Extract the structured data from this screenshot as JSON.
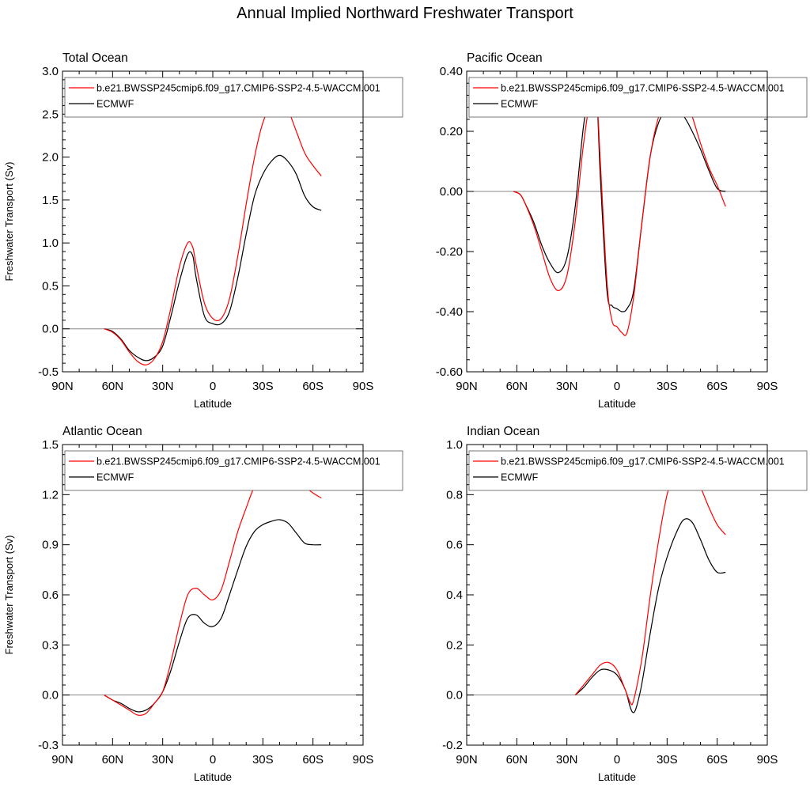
{
  "title": "Annual Implied Northward Freshwater Transport",
  "colors": {
    "model": "#ff0000",
    "obs": "#000000",
    "zero_line": "#888888"
  },
  "chart_data": [
    {
      "type": "line",
      "title": "Total Ocean",
      "xlabel": "Latitude",
      "ylabel": "Freshwater Transport (Sv)",
      "xlim": [
        90,
        -90
      ],
      "xticks": [
        90,
        60,
        30,
        0,
        -30,
        -60,
        -90
      ],
      "xtick_labels": [
        "90N",
        "60N",
        "30N",
        "0",
        "30S",
        "60S",
        "90S"
      ],
      "ylim": [
        -0.5,
        3.0
      ],
      "yticks": [
        -0.5,
        0.0,
        0.5,
        1.0,
        1.5,
        2.0,
        2.5,
        3.0
      ],
      "ytick_labels": [
        "-0.5",
        "0.0",
        "0.5",
        "1.0",
        "1.5",
        "2.0",
        "2.5",
        "3.0"
      ],
      "legend_position": "top-left",
      "series": [
        {
          "name": "b.e21.BWSSP245cmip6.f09_g17.CMIP6-SSP2-4.5-WACCM.001",
          "color": "#ff0000",
          "x": [
            65,
            60,
            55,
            50,
            45,
            40,
            35,
            30,
            25,
            20,
            15,
            12,
            10,
            5,
            0,
            -5,
            -10,
            -15,
            -20,
            -25,
            -30,
            -35,
            -40,
            -45,
            -50,
            -55,
            -60,
            -65
          ],
          "y": [
            0.0,
            -0.04,
            -0.13,
            -0.27,
            -0.38,
            -0.42,
            -0.35,
            -0.15,
            0.25,
            0.72,
            1.0,
            0.95,
            0.75,
            0.3,
            0.12,
            0.12,
            0.35,
            0.85,
            1.45,
            2.0,
            2.4,
            2.6,
            2.65,
            2.55,
            2.3,
            2.05,
            1.9,
            1.78
          ]
        },
        {
          "name": "ECMWF",
          "color": "#000000",
          "x": [
            65,
            60,
            55,
            50,
            45,
            40,
            35,
            30,
            25,
            20,
            15,
            12,
            10,
            5,
            0,
            -5,
            -10,
            -15,
            -20,
            -25,
            -30,
            -35,
            -40,
            -45,
            -50,
            -55,
            -60,
            -65
          ],
          "y": [
            0.0,
            -0.03,
            -0.12,
            -0.25,
            -0.33,
            -0.37,
            -0.33,
            -0.2,
            0.15,
            0.55,
            0.87,
            0.85,
            0.6,
            0.15,
            0.06,
            0.06,
            0.2,
            0.6,
            1.1,
            1.55,
            1.8,
            1.95,
            2.02,
            1.95,
            1.8,
            1.55,
            1.42,
            1.38
          ]
        }
      ]
    },
    {
      "type": "line",
      "title": "Pacific Ocean",
      "xlabel": "Latitude",
      "ylabel": "",
      "xlim": [
        90,
        -90
      ],
      "xticks": [
        90,
        60,
        30,
        0,
        -30,
        -60,
        -90
      ],
      "xtick_labels": [
        "90N",
        "60N",
        "30N",
        "0",
        "30S",
        "60S",
        "90S"
      ],
      "ylim": [
        -0.6,
        0.4
      ],
      "yticks": [
        -0.6,
        -0.4,
        -0.2,
        0.0,
        0.2,
        0.4
      ],
      "ytick_labels": [
        "-0.60",
        "-0.40",
        "-0.20",
        "0.00",
        "0.20",
        "0.40"
      ],
      "legend_position": "top-left",
      "series": [
        {
          "name": "b.e21.BWSSP245cmip6.f09_g17.CMIP6-SSP2-4.5-WACCM.001",
          "color": "#ff0000",
          "x": [
            62,
            58,
            55,
            50,
            45,
            40,
            35,
            30,
            25,
            20,
            15,
            12,
            10,
            6,
            3,
            0,
            -3,
            -6,
            -10,
            -15,
            -20,
            -25,
            -30,
            -35,
            -40,
            -45,
            -50,
            -55,
            -60,
            -65
          ],
          "y": [
            0.0,
            -0.01,
            -0.04,
            -0.11,
            -0.2,
            -0.29,
            -0.33,
            -0.28,
            -0.1,
            0.16,
            0.33,
            0.3,
            0.1,
            -0.3,
            -0.43,
            -0.45,
            -0.47,
            -0.47,
            -0.35,
            -0.1,
            0.12,
            0.25,
            0.31,
            0.33,
            0.32,
            0.25,
            0.16,
            0.08,
            0.02,
            -0.05
          ]
        },
        {
          "name": "ECMWF",
          "color": "#000000",
          "x": [
            62,
            58,
            55,
            50,
            45,
            40,
            35,
            30,
            25,
            20,
            15,
            12,
            10,
            6,
            3,
            0,
            -3,
            -6,
            -10,
            -15,
            -20,
            -25,
            -30,
            -35,
            -40,
            -45,
            -50,
            -55,
            -60,
            -65
          ],
          "y": [
            0.0,
            -0.01,
            -0.04,
            -0.1,
            -0.18,
            -0.24,
            -0.27,
            -0.22,
            -0.05,
            0.22,
            0.37,
            0.3,
            0.05,
            -0.33,
            -0.38,
            -0.39,
            -0.4,
            -0.39,
            -0.33,
            -0.1,
            0.12,
            0.23,
            0.27,
            0.27,
            0.25,
            0.2,
            0.14,
            0.07,
            0.01,
            0.0
          ]
        }
      ]
    },
    {
      "type": "line",
      "title": "Atlantic Ocean",
      "xlabel": "Latitude",
      "ylabel": "Freshwater Transport (Sv)",
      "xlim": [
        90,
        -90
      ],
      "xticks": [
        90,
        60,
        30,
        0,
        -30,
        -60,
        -90
      ],
      "xtick_labels": [
        "90N",
        "60N",
        "30N",
        "0",
        "30S",
        "60S",
        "90S"
      ],
      "ylim": [
        -0.3,
        1.5
      ],
      "yticks": [
        -0.3,
        0.0,
        0.3,
        0.6,
        0.9,
        1.2,
        1.5
      ],
      "ytick_labels": [
        "-0.3",
        "0.0",
        "0.3",
        "0.6",
        "0.9",
        "1.2",
        "1.5"
      ],
      "legend_position": "top-left",
      "series": [
        {
          "name": "b.e21.BWSSP245cmip6.f09_g17.CMIP6-SSP2-4.5-WACCM.001",
          "color": "#ff0000",
          "x": [
            65,
            60,
            55,
            50,
            45,
            40,
            35,
            30,
            25,
            20,
            15,
            10,
            5,
            0,
            -5,
            -10,
            -15,
            -20,
            -25,
            -30,
            -35,
            -40,
            -45,
            -50,
            -55,
            -60,
            -65
          ],
          "y": [
            0.0,
            -0.03,
            -0.06,
            -0.09,
            -0.12,
            -0.11,
            -0.05,
            0.02,
            0.2,
            0.42,
            0.6,
            0.64,
            0.6,
            0.57,
            0.63,
            0.8,
            0.98,
            1.12,
            1.25,
            1.32,
            1.37,
            1.39,
            1.36,
            1.3,
            1.25,
            1.21,
            1.18
          ]
        },
        {
          "name": "ECMWF",
          "color": "#000000",
          "x": [
            65,
            60,
            55,
            50,
            45,
            40,
            35,
            30,
            25,
            20,
            15,
            10,
            5,
            0,
            -5,
            -10,
            -15,
            -20,
            -25,
            -30,
            -35,
            -40,
            -45,
            -50,
            -55,
            -60,
            -65
          ],
          "y": [
            0.0,
            -0.03,
            -0.05,
            -0.08,
            -0.1,
            -0.09,
            -0.05,
            0.02,
            0.15,
            0.32,
            0.46,
            0.48,
            0.43,
            0.41,
            0.46,
            0.6,
            0.75,
            0.89,
            0.98,
            1.02,
            1.04,
            1.05,
            1.03,
            0.97,
            0.91,
            0.9,
            0.9
          ]
        }
      ]
    },
    {
      "type": "line",
      "title": "Indian Ocean",
      "xlabel": "Latitude",
      "ylabel": "",
      "xlim": [
        90,
        -90
      ],
      "xticks": [
        90,
        60,
        30,
        0,
        -30,
        -60,
        -90
      ],
      "xtick_labels": [
        "90N",
        "60N",
        "30N",
        "0",
        "30S",
        "60S",
        "90S"
      ],
      "ylim": [
        -0.2,
        1.0
      ],
      "yticks": [
        -0.2,
        0.0,
        0.2,
        0.4,
        0.6,
        0.8,
        1.0
      ],
      "ytick_labels": [
        "-0.2",
        "0.0",
        "0.2",
        "0.4",
        "0.6",
        "0.8",
        "1.0"
      ],
      "legend_position": "top-left",
      "series": [
        {
          "name": "b.e21.BWSSP245cmip6.f09_g17.CMIP6-SSP2-4.5-WACCM.001",
          "color": "#ff0000",
          "x": [
            25,
            20,
            15,
            10,
            5,
            0,
            -5,
            -8,
            -10,
            -15,
            -20,
            -25,
            -30,
            -35,
            -40,
            -45,
            -50,
            -55,
            -60,
            -65
          ],
          "y": [
            0.0,
            0.04,
            0.08,
            0.12,
            0.13,
            0.1,
            0.02,
            -0.03,
            -0.02,
            0.15,
            0.4,
            0.62,
            0.8,
            0.9,
            0.94,
            0.9,
            0.83,
            0.75,
            0.68,
            0.64
          ]
        },
        {
          "name": "ECMWF",
          "color": "#000000",
          "x": [
            25,
            20,
            15,
            10,
            5,
            0,
            -5,
            -8,
            -10,
            -12,
            -15,
            -20,
            -25,
            -30,
            -35,
            -40,
            -45,
            -50,
            -55,
            -60,
            -65
          ],
          "y": [
            0.0,
            0.03,
            0.07,
            0.1,
            0.1,
            0.08,
            0.02,
            -0.05,
            -0.07,
            -0.04,
            0.05,
            0.25,
            0.43,
            0.55,
            0.64,
            0.7,
            0.69,
            0.62,
            0.54,
            0.49,
            0.49
          ]
        }
      ]
    }
  ]
}
